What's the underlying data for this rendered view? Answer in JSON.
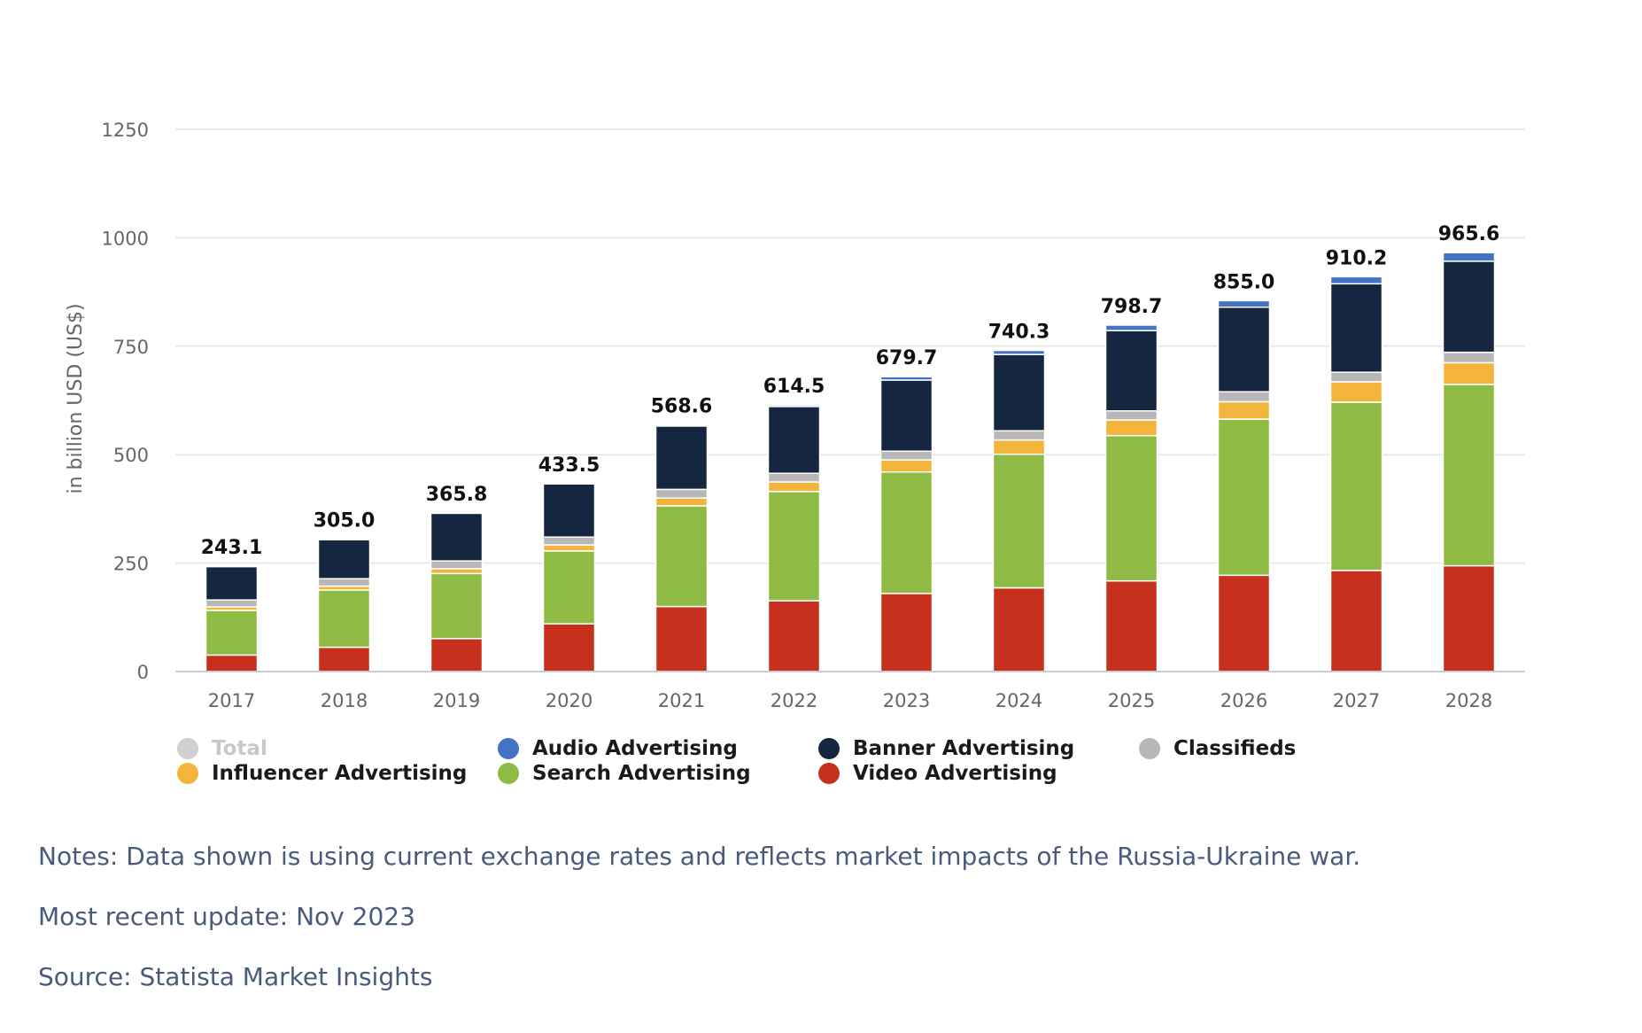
{
  "chart_data": {
    "type": "bar",
    "stacked": true,
    "ylabel": "in billion USD (US$)",
    "xlabel": "",
    "ylim": [
      0,
      1250
    ],
    "yticks": [
      0,
      250,
      500,
      750,
      1000,
      1250
    ],
    "categories": [
      "2017",
      "2018",
      "2019",
      "2020",
      "2021",
      "2022",
      "2023",
      "2024",
      "2025",
      "2026",
      "2027",
      "2028"
    ],
    "totals": [
      243.1,
      305.0,
      365.8,
      433.5,
      568.6,
      614.5,
      679.7,
      740.3,
      798.7,
      855.0,
      910.2,
      965.6
    ],
    "total_labels": [
      "243.1",
      "305.0",
      "365.8",
      "433.5",
      "568.6",
      "614.5",
      "679.7",
      "740.3",
      "798.7",
      "855.0",
      "910.2",
      "965.6"
    ],
    "series": [
      {
        "name": "Video Advertising",
        "color": "#c8301e",
        "values": [
          38,
          56,
          76,
          110,
          150,
          163,
          180,
          193,
          209,
          222,
          233,
          244
        ]
      },
      {
        "name": "Search Advertising",
        "color": "#8fba43",
        "values": [
          103,
          132,
          150,
          168,
          232,
          252,
          280,
          308,
          335,
          360,
          388,
          418
        ]
      },
      {
        "name": "Influencer Advertising",
        "color": "#f2b43a",
        "values": [
          8,
          9,
          11,
          14,
          18,
          22,
          28,
          33,
          36,
          40,
          47,
          50
        ]
      },
      {
        "name": "Classifieds",
        "color": "#b7b7b7",
        "values": [
          16,
          17,
          18,
          18,
          20,
          20,
          20,
          21,
          21,
          23,
          22,
          24
        ]
      },
      {
        "name": "Banner Advertising",
        "color": "#152740",
        "values": [
          77,
          90,
          110,
          123,
          146,
          154,
          164,
          176,
          185,
          195,
          204,
          210
        ]
      },
      {
        "name": "Audio Advertising",
        "color": "#4472c4",
        "values": [
          1.1,
          1.0,
          0.8,
          0.5,
          2.6,
          3.5,
          7.7,
          9.3,
          12.7,
          15.0,
          16.2,
          19.6
        ]
      }
    ],
    "legend": [
      {
        "name": "Total",
        "color": "#d0d0d0",
        "dimmed": true
      },
      {
        "name": "Audio Advertising",
        "color": "#4472c4",
        "dimmed": false
      },
      {
        "name": "Banner Advertising",
        "color": "#152740",
        "dimmed": false
      },
      {
        "name": "Classifieds",
        "color": "#b7b7b7",
        "dimmed": false
      },
      {
        "name": "Influencer Advertising",
        "color": "#f2b43a",
        "dimmed": false
      },
      {
        "name": "Search Advertising",
        "color": "#8fba43",
        "dimmed": false
      },
      {
        "name": "Video Advertising",
        "color": "#c8301e",
        "dimmed": false
      }
    ]
  },
  "notes": {
    "line1": "Notes: Data shown is using current exchange rates and reflects market impacts of the Russia-Ukraine war.",
    "line2": "Most recent update: Nov 2023",
    "line3": "Source: Statista Market Insights"
  }
}
